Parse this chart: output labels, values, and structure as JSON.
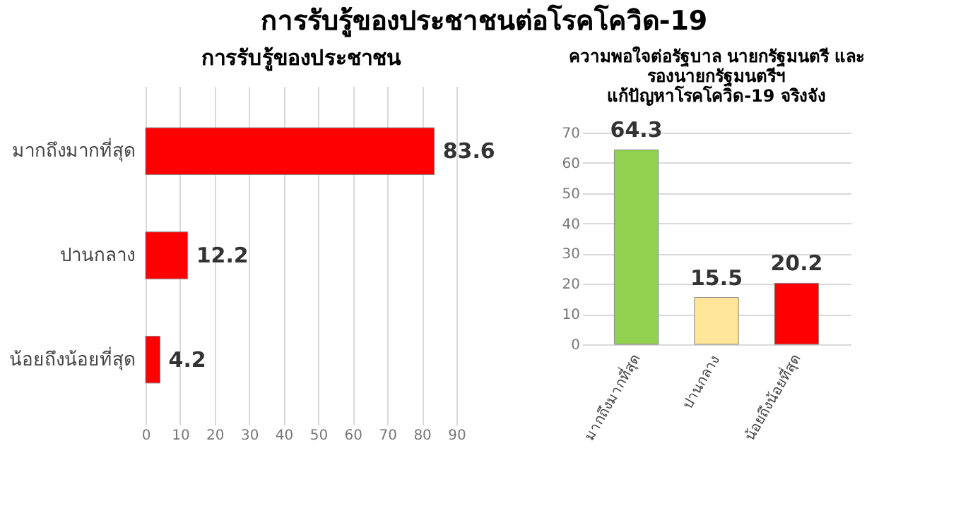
{
  "chart_data": [
    {
      "type": "bar",
      "title": "การรับรู้ของประชาชนต่อโรคโควิด-19",
      "subtitle": "การรับรู้ของประชาชน",
      "orientation": "horizontal",
      "categories": [
        "มากถึงมากที่สุด",
        "ปานกลาง",
        "น้อยถึงน้อยที่สุด"
      ],
      "values": [
        83.6,
        12.2,
        4.2
      ],
      "color": "#ff0000",
      "xlim": [
        0,
        90
      ],
      "xticks": [
        0,
        10,
        20,
        30,
        40,
        50,
        60,
        70,
        80,
        90
      ],
      "grid": "x",
      "data_labels": true
    },
    {
      "type": "bar",
      "title": "ความพอใจต่อรัฐบาล นายกรัฐมนตรี และ\nรองนายกรัฐมนตรีฯ\nแก้ปัญหาโรคโควิด-19 จริงจัง",
      "categories": [
        "มากถึงมากที่สุด",
        "ปานกลาง",
        "น้อยถึงน้อยที่สุด"
      ],
      "values": [
        64.3,
        15.5,
        20.2
      ],
      "colors": [
        "#92d050",
        "#ffe699",
        "#ff0000"
      ],
      "ylim": [
        0,
        70
      ],
      "yticks": [
        0,
        10,
        20,
        30,
        40,
        50,
        60,
        70
      ],
      "grid": "y",
      "data_labels": true
    }
  ]
}
